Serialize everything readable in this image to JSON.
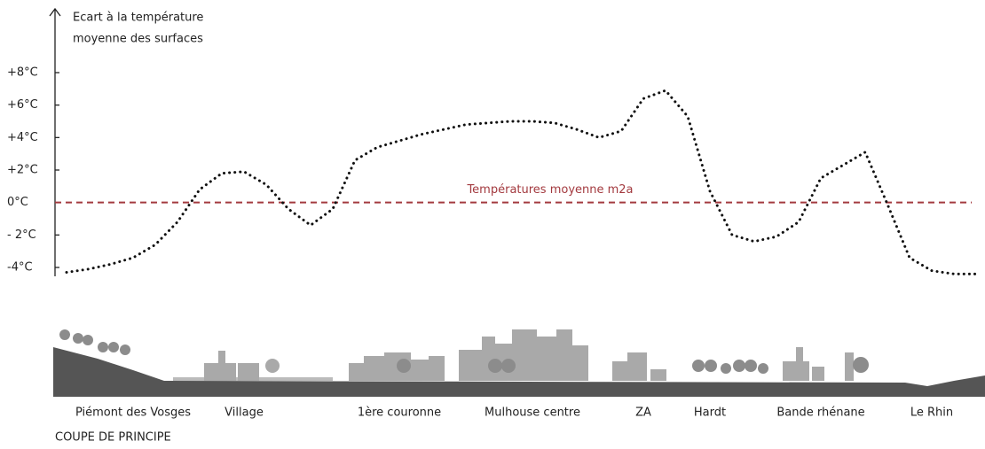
{
  "chart_data": {
    "type": "line",
    "y_label": [
      "Ecart à la température",
      "moyenne des surfaces"
    ],
    "caption": "COUPE DE PRINCIPE",
    "reference": {
      "value": 0,
      "label": "Températures moyenne m2a",
      "color": "#a33a3f"
    },
    "ylim": [
      -4,
      8
    ],
    "yticks": [
      {
        "value": -4,
        "label": "-4°C"
      },
      {
        "value": -2,
        "label": "- 2°C"
      },
      {
        "value": 0,
        "label": "0°C"
      },
      {
        "value": 2,
        "label": "+2°C"
      },
      {
        "value": 4,
        "label": "+4°C"
      },
      {
        "value": 6,
        "label": "+6°C"
      },
      {
        "value": 8,
        "label": "+8°C"
      }
    ],
    "categories": [
      null,
      null,
      null,
      "Piémont des Vosges",
      null,
      null,
      null,
      null,
      "Village",
      null,
      null,
      null,
      null,
      null,
      null,
      "1ère couronne",
      null,
      null,
      null,
      null,
      null,
      "Mulhouse centre",
      null,
      null,
      null,
      null,
      "ZA",
      null,
      null,
      "Hardt",
      null,
      null,
      null,
      null,
      "Bande rhénane",
      null,
      null,
      null,
      null,
      "Le Rhin",
      null,
      null
    ],
    "series": [
      {
        "color": "#111111",
        "values": [
          -4.3,
          -4.1,
          -3.8,
          -3.4,
          -2.6,
          -1.2,
          0.8,
          1.8,
          1.9,
          1.1,
          -0.4,
          -1.4,
          -0.4,
          2.6,
          3.4,
          3.8,
          4.2,
          4.5,
          4.8,
          4.9,
          5.0,
          5.0,
          4.9,
          4.5,
          4.0,
          4.4,
          6.4,
          6.9,
          5.3,
          0.7,
          -2.0,
          -2.4,
          -2.1,
          -1.2,
          1.5,
          2.3,
          3.1,
          -0.1,
          -3.4,
          -4.2,
          -4.4,
          -4.4
        ]
      }
    ]
  }
}
